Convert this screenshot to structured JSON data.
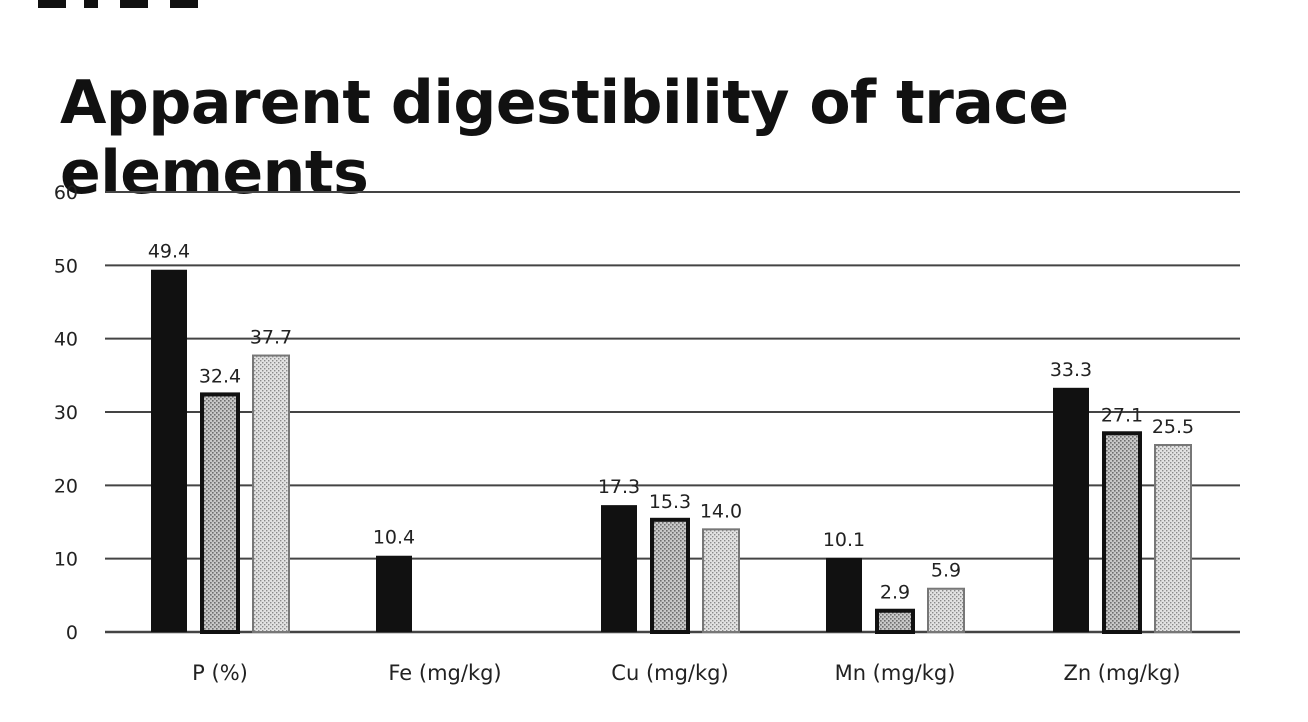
{
  "chart_data": {
    "type": "bar",
    "title": "Apparent digestibility of trace elements",
    "xlabel": "",
    "ylabel": "",
    "ylim": [
      0,
      60
    ],
    "yticks": [
      0,
      10,
      20,
      30,
      40,
      50,
      60
    ],
    "grid": true,
    "legend": "none",
    "categories": [
      "P (%)",
      "Fe (mg/kg)",
      "Cu (mg/kg)",
      "Mn (mg/kg)",
      "Zn (mg/kg)"
    ],
    "series": [
      {
        "values": [
          49.4,
          10.4,
          17.3,
          10.1,
          33.3
        ],
        "labels": [
          "49.4",
          "10.4",
          "17.3",
          "10.1",
          "33.3"
        ],
        "fill": "#111111"
      },
      {
        "values": [
          32.4,
          null,
          15.3,
          2.9,
          27.1
        ],
        "labels": [
          "32.4",
          "",
          "15.3",
          "2.9",
          "27.1"
        ],
        "fill": "#bdbdbd"
      },
      {
        "values": [
          37.7,
          null,
          14.0,
          5.9,
          25.5
        ],
        "labels": [
          "37.7",
          "",
          "14.0",
          "5.9",
          "25.5"
        ],
        "fill": "#d9d9d9"
      }
    ]
  }
}
